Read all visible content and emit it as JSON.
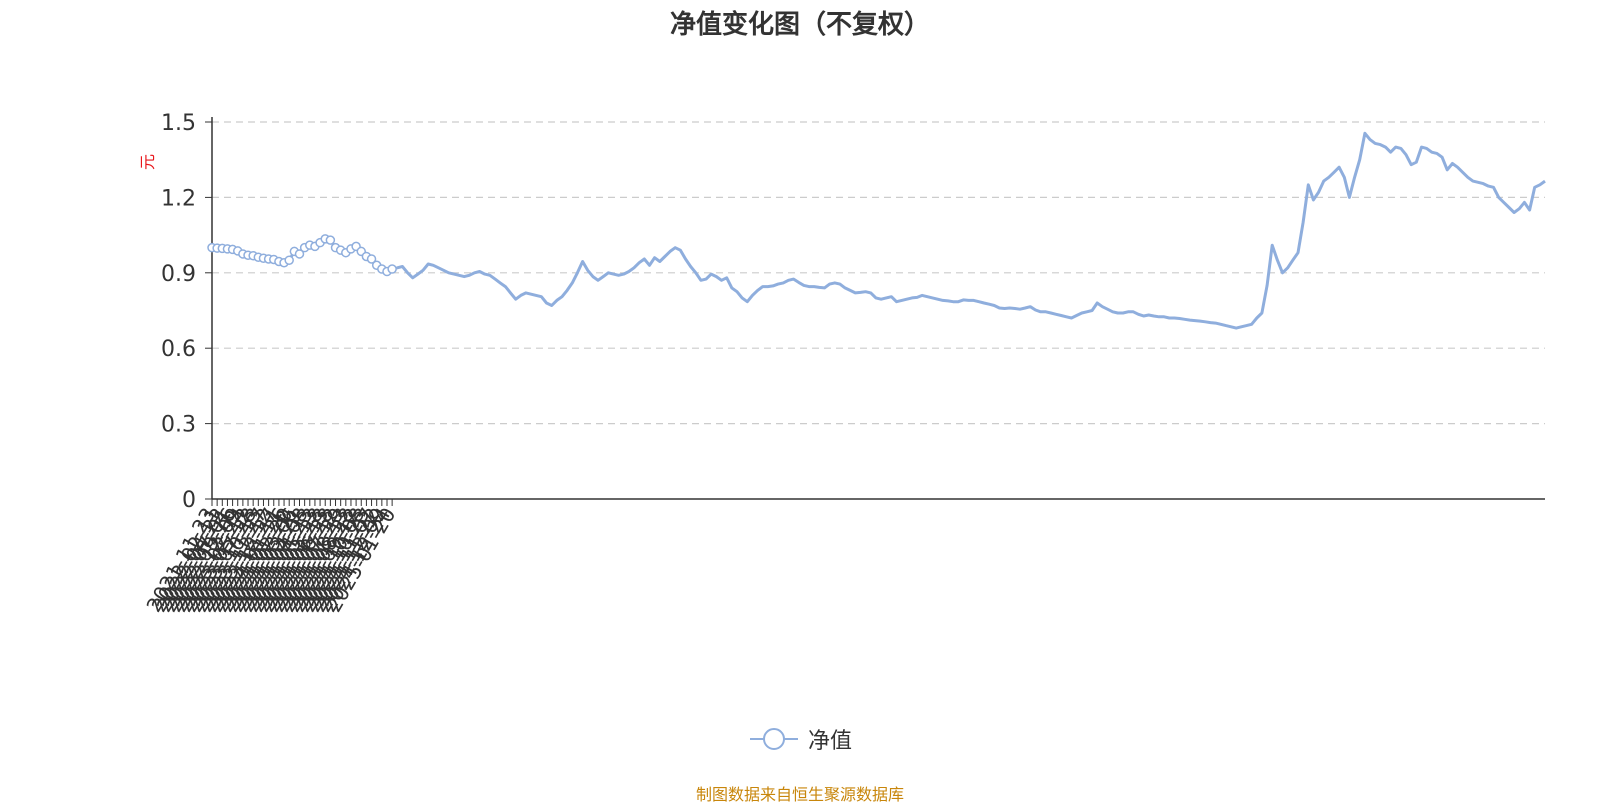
{
  "title": "净值变化图（不复权）",
  "source": "制图数据来自恒生聚源数据库",
  "colors": {
    "line": "#8faedd",
    "ylabel": "#e8161b",
    "source": "#c8860b",
    "grid": "#cccccc",
    "axis": "#333333"
  },
  "chart_data": {
    "type": "line",
    "title": "净值变化图（不复权）",
    "ylabel": "元",
    "xlabel": "",
    "ylim": [
      0,
      1.5
    ],
    "yticks": [
      "0",
      "0.3",
      "0.6",
      "0.9",
      "1.2",
      "1.5"
    ],
    "grid": "horizontal dashed",
    "legend_position": "bottom-center",
    "x_tick_labels": [
      "2021-11-23",
      "2022-02-11",
      "2022-04-22",
      "2022-07-01",
      "2022-09-16",
      "2022-12-09",
      "2023-02-24",
      "2023-05-12",
      "2023-07-28",
      "2023-10-13",
      "2023-11-27",
      "2023-12-12",
      "2023-12-27",
      "2024-01-11",
      "2024-01-26",
      "2024-02-20",
      "2024-03-06",
      "2024-03-21",
      "2024-04-08",
      "2024-04-23",
      "2024-05-13",
      "2024-05-28",
      "2024-06-13",
      "2024-06-28",
      "2024-07-12",
      "2024-07-29",
      "2024-08-13",
      "2024-08-28",
      "2024-09-12",
      "2024-10-08",
      "2024-10-23",
      "2024-11-07",
      "2024-11-22",
      "2024-12-09",
      "2024-12-24",
      "2025-01-20"
    ],
    "series": [
      {
        "name": "净值",
        "marker_indices": [
          0,
          1,
          2,
          3,
          4,
          5,
          6,
          7,
          8,
          9,
          10,
          11,
          12,
          13,
          14,
          15,
          16,
          17,
          18,
          19,
          20,
          21,
          22,
          23,
          24,
          25,
          26,
          27,
          28,
          29,
          30,
          31,
          32,
          33,
          34,
          35
        ],
        "values": [
          1.0,
          0.998,
          0.997,
          0.995,
          0.993,
          0.987,
          0.975,
          0.97,
          0.968,
          0.962,
          0.958,
          0.955,
          0.953,
          0.945,
          0.94,
          0.95,
          0.985,
          0.975,
          1.0,
          1.01,
          1.005,
          1.02,
          1.035,
          1.03,
          1.0,
          0.99,
          0.98,
          0.995,
          1.005,
          0.985,
          0.965,
          0.955,
          0.93,
          0.915,
          0.905,
          0.915,
          0.92,
          0.925,
          0.9,
          0.88,
          0.895,
          0.91,
          0.935,
          0.93,
          0.92,
          0.91,
          0.9,
          0.895,
          0.89,
          0.885,
          0.89,
          0.9,
          0.905,
          0.895,
          0.89,
          0.875,
          0.86,
          0.845,
          0.82,
          0.795,
          0.81,
          0.82,
          0.815,
          0.81,
          0.805,
          0.78,
          0.77,
          0.79,
          0.805,
          0.83,
          0.86,
          0.9,
          0.945,
          0.91,
          0.885,
          0.87,
          0.885,
          0.9,
          0.895,
          0.89,
          0.895,
          0.905,
          0.92,
          0.94,
          0.955,
          0.93,
          0.96,
          0.945,
          0.965,
          0.985,
          1.0,
          0.99,
          0.955,
          0.925,
          0.9,
          0.87,
          0.875,
          0.895,
          0.885,
          0.87,
          0.88,
          0.84,
          0.825,
          0.8,
          0.785,
          0.81,
          0.83,
          0.845,
          0.845,
          0.848,
          0.855,
          0.86,
          0.87,
          0.875,
          0.862,
          0.85,
          0.845,
          0.845,
          0.842,
          0.84,
          0.855,
          0.86,
          0.855,
          0.84,
          0.83,
          0.82,
          0.822,
          0.825,
          0.82,
          0.8,
          0.795,
          0.8,
          0.805,
          0.785,
          0.79,
          0.795,
          0.8,
          0.802,
          0.81,
          0.805,
          0.8,
          0.795,
          0.79,
          0.788,
          0.785,
          0.785,
          0.792,
          0.79,
          0.79,
          0.785,
          0.78,
          0.775,
          0.77,
          0.76,
          0.758,
          0.76,
          0.758,
          0.755,
          0.76,
          0.765,
          0.752,
          0.745,
          0.745,
          0.74,
          0.735,
          0.73,
          0.725,
          0.72,
          0.73,
          0.74,
          0.745,
          0.75,
          0.78,
          0.765,
          0.755,
          0.745,
          0.74,
          0.74,
          0.745,
          0.745,
          0.735,
          0.728,
          0.732,
          0.728,
          0.725,
          0.725,
          0.72,
          0.72,
          0.718,
          0.715,
          0.712,
          0.71,
          0.708,
          0.705,
          0.702,
          0.7,
          0.695,
          0.69,
          0.685,
          0.68,
          0.685,
          0.69,
          0.695,
          0.72,
          0.74,
          0.85,
          1.01,
          0.95,
          0.9,
          0.92,
          0.95,
          0.98,
          1.1,
          1.25,
          1.19,
          1.22,
          1.265,
          1.28,
          1.3,
          1.32,
          1.28,
          1.2,
          1.28,
          1.35,
          1.455,
          1.43,
          1.415,
          1.41,
          1.4,
          1.38,
          1.4,
          1.395,
          1.37,
          1.33,
          1.34,
          1.4,
          1.395,
          1.38,
          1.375,
          1.36,
          1.31,
          1.335,
          1.32,
          1.3,
          1.28,
          1.265,
          1.26,
          1.255,
          1.245,
          1.24,
          1.2,
          1.18,
          1.16,
          1.14,
          1.155,
          1.18,
          1.15,
          1.24,
          1.25,
          1.265
        ]
      }
    ]
  }
}
